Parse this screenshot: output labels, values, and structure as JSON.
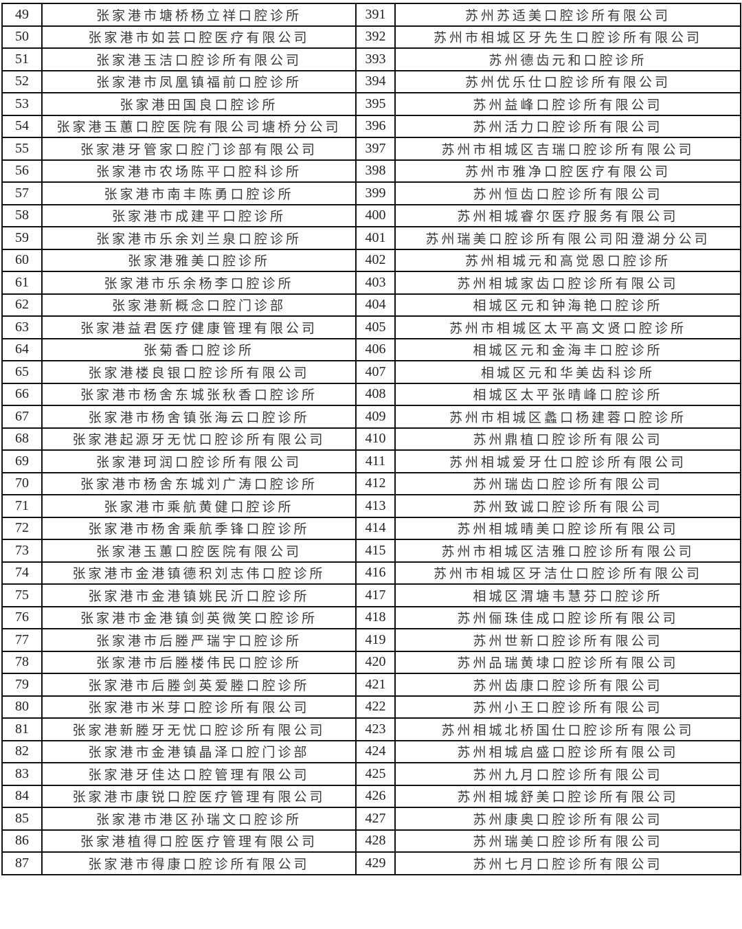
{
  "rows": [
    [
      "49",
      "张家港市塘桥杨立祥口腔诊所",
      "391",
      "苏州苏适美口腔诊所有限公司"
    ],
    [
      "50",
      "张家港市如芸口腔医疗有限公司",
      "392",
      "苏州市相城区牙先生口腔诊所有限公司"
    ],
    [
      "51",
      "张家港玉洁口腔诊所有限公司",
      "393",
      "苏州德齿元和口腔诊所"
    ],
    [
      "52",
      "张家港市凤凰镇福前口腔诊所",
      "394",
      "苏州优乐仕口腔诊所有限公司"
    ],
    [
      "53",
      "张家港田国良口腔诊所",
      "395",
      "苏州益峰口腔诊所有限公司"
    ],
    [
      "54",
      "张家港玉蕙口腔医院有限公司塘桥分公司",
      "396",
      "苏州活力口腔诊所有限公司"
    ],
    [
      "55",
      "张家港牙管家口腔门诊部有限公司",
      "397",
      "苏州市相城区吉瑞口腔诊所有限公司"
    ],
    [
      "56",
      "张家港市农场陈平口腔科诊所",
      "398",
      "苏州市雅净口腔医疗有限公司"
    ],
    [
      "57",
      "张家港市南丰陈勇口腔诊所",
      "399",
      "苏州恒齿口腔诊所有限公司"
    ],
    [
      "58",
      "张家港市成建平口腔诊所",
      "400",
      "苏州相城睿尔医疗服务有限公司"
    ],
    [
      "59",
      "张家港市乐余刘兰泉口腔诊所",
      "401",
      "苏州瑞美口腔诊所有限公司阳澄湖分公司"
    ],
    [
      "60",
      "张家港雅美口腔诊所",
      "402",
      "苏州相城元和高觉恩口腔诊所"
    ],
    [
      "61",
      "张家港市乐余杨李口腔诊所",
      "403",
      "苏州相城家齿口腔诊所有限公司"
    ],
    [
      "62",
      "张家港新概念口腔门诊部",
      "404",
      "相城区元和钟海艳口腔诊所"
    ],
    [
      "63",
      "张家港益君医疗健康管理有限公司",
      "405",
      "苏州市相城区太平高文贤口腔诊所"
    ],
    [
      "64",
      "张菊香口腔诊所",
      "406",
      "相城区元和金海丰口腔诊所"
    ],
    [
      "65",
      "张家港楼良银口腔诊所有限公司",
      "407",
      "相城区元和华美齿科诊所"
    ],
    [
      "66",
      "张家港市杨舍东城张秋香口腔诊所",
      "408",
      "相城区太平张晴峰口腔诊所"
    ],
    [
      "67",
      "张家港市杨舍镇张海云口腔诊所",
      "409",
      "苏州市相城区蠡口杨建蓉口腔诊所"
    ],
    [
      "68",
      "张家港起源牙无忧口腔诊所有限公司",
      "410",
      "苏州鼎植口腔诊所有限公司"
    ],
    [
      "69",
      "张家港珂润口腔诊所有限公司",
      "411",
      "苏州相城爱牙仕口腔诊所有限公司"
    ],
    [
      "70",
      "张家港市杨舍东城刘广涛口腔诊所",
      "412",
      "苏州瑞齿口腔诊所有限公司"
    ],
    [
      "71",
      "张家港市乘航黄健口腔诊所",
      "413",
      "苏州致诚口腔诊所有限公司"
    ],
    [
      "72",
      "张家港市杨舍乘航季锋口腔诊所",
      "414",
      "苏州相城晴美口腔诊所有限公司"
    ],
    [
      "73",
      "张家港玉蕙口腔医院有限公司",
      "415",
      "苏州市相城区洁雅口腔诊所有限公司"
    ],
    [
      "74",
      "张家港市金港镇德积刘志伟口腔诊所",
      "416",
      "苏州市相城区牙洁仕口腔诊所有限公司"
    ],
    [
      "75",
      "张家港市金港镇姚民沂口腔诊所",
      "417",
      "相城区渭塘韦慧芬口腔诊所"
    ],
    [
      "76",
      "张家港市金港镇剑英微笑口腔诊所",
      "418",
      "苏州俪珠佳成口腔诊所有限公司"
    ],
    [
      "77",
      "张家港市后塍严瑞宇口腔诊所",
      "419",
      "苏州世新口腔诊所有限公司"
    ],
    [
      "78",
      "张家港市后塍楼伟民口腔诊所",
      "420",
      "苏州品瑞黄埭口腔诊所有限公司"
    ],
    [
      "79",
      "张家港市后塍剑英爱塍口腔诊所",
      "421",
      "苏州齿康口腔诊所有限公司"
    ],
    [
      "80",
      "张家港市米芽口腔诊所有限公司",
      "422",
      "苏州小王口腔诊所有限公司"
    ],
    [
      "81",
      "张家港新塍牙无忧口腔诊所有限公司",
      "423",
      "苏州相城北桥国仕口腔诊所有限公司"
    ],
    [
      "82",
      "张家港市金港镇晶泽口腔门诊部",
      "424",
      "苏州相城启盛口腔诊所有限公司"
    ],
    [
      "83",
      "张家港牙佳达口腔管理有限公司",
      "425",
      "苏州九月口腔诊所有限公司"
    ],
    [
      "84",
      "张家港市康锐口腔医疗管理有限公司",
      "426",
      "苏州相城舒美口腔诊所有限公司"
    ],
    [
      "85",
      "张家港市港区孙瑞文口腔诊所",
      "427",
      "苏州康奥口腔诊所有限公司"
    ],
    [
      "86",
      "张家港植得口腔医疗管理有限公司",
      "428",
      "苏州瑞美口腔诊所有限公司"
    ],
    [
      "87",
      "张家港市得康口腔诊所有限公司",
      "429",
      "苏州七月口腔诊所有限公司"
    ]
  ]
}
